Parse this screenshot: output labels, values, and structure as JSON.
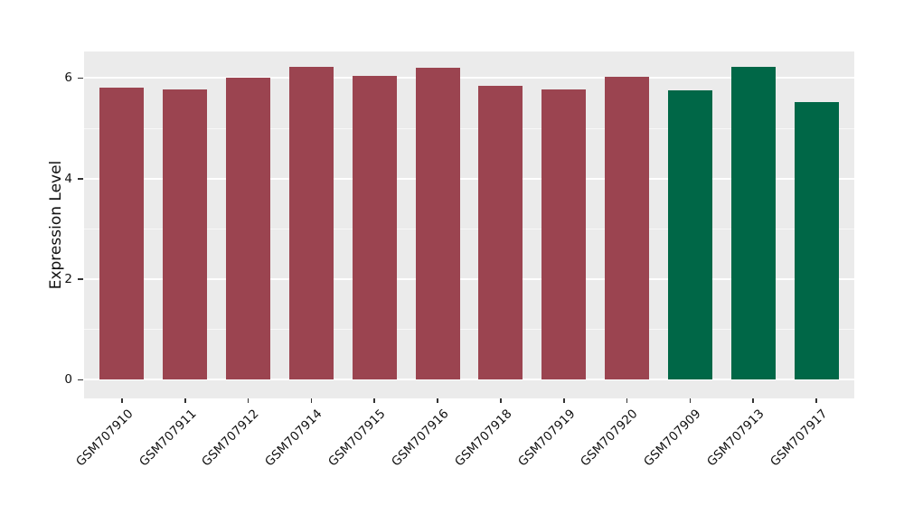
{
  "chart_data": {
    "type": "bar",
    "title": "",
    "xlabel": "",
    "ylabel": "Expression Level",
    "categories": [
      "GSM707910",
      "GSM707911",
      "GSM707912",
      "GSM707914",
      "GSM707915",
      "GSM707916",
      "GSM707918",
      "GSM707919",
      "GSM707920",
      "GSM707909",
      "GSM707913",
      "GSM707917"
    ],
    "values": [
      5.82,
      5.78,
      6.0,
      6.22,
      6.05,
      6.21,
      5.85,
      5.77,
      6.03,
      5.75,
      6.22,
      5.53
    ],
    "bar_colors": [
      "#9B4450",
      "#9B4450",
      "#9B4450",
      "#9B4450",
      "#9B4450",
      "#9B4450",
      "#9B4450",
      "#9B4450",
      "#9B4450",
      "#006747",
      "#006747",
      "#006747"
    ],
    "group_colors": {
      "maroon": "#9B4450",
      "green": "#006747"
    },
    "ytick_labels": [
      "0",
      "2",
      "4",
      "6"
    ],
    "ytick_values": [
      0,
      2,
      4,
      6
    ],
    "minor_grid_values": [
      1,
      3,
      5
    ],
    "ylim": [
      -0.37,
      6.53
    ],
    "xlim_units": [
      0.4,
      12.6
    ],
    "bar_width_units": 0.7,
    "x_tick_rotation_deg": 45,
    "panel_bg": "#EBEBEB",
    "grid_color": "#FFFFFF",
    "legend_position": "none",
    "grid": true
  }
}
